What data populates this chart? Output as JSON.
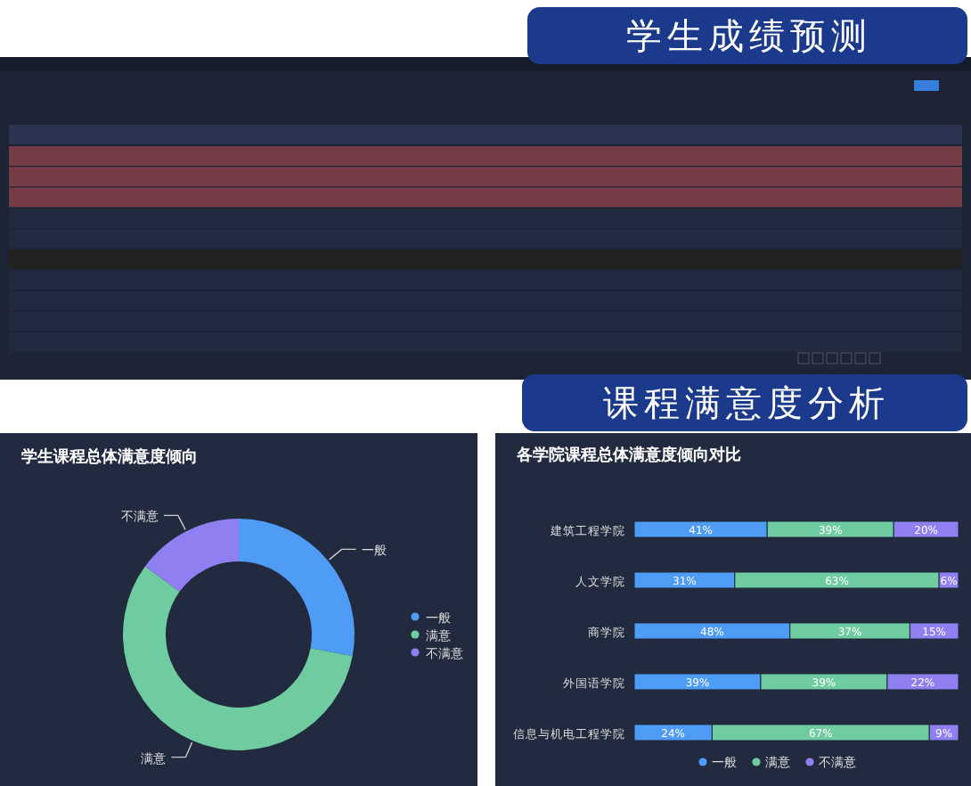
{
  "chart_data": [
    {
      "type": "other",
      "annotations": [
        "学生成绩预测",
        "课程满意度分析"
      ]
    },
    {
      "type": "donut",
      "title": "学生课程总体满意度倾向",
      "categories": [
        "一般",
        "满意",
        "不满意"
      ],
      "values": [
        28,
        57,
        15
      ],
      "colors": [
        "#4e9cf5",
        "#6fcba0",
        "#8f7ff0"
      ],
      "legend": "right"
    },
    {
      "type": "bar",
      "title": "各学院课程总体满意度倾向对比",
      "orientation": "horizontal",
      "stacked": true,
      "categories": [
        "建筑工程学院",
        "人文学院",
        "商学院",
        "外国语学院",
        "信息与机电工程学院"
      ],
      "xlim": [
        0,
        100
      ],
      "tick_labels": "y",
      "legend": "bottom",
      "series": [
        {
          "name": "一般",
          "color": "#4e9cf5",
          "values": [
            41,
            31,
            48,
            39,
            24
          ],
          "value_labels": [
            "41%",
            "31%",
            "48%",
            "39%",
            "24%"
          ]
        },
        {
          "name": "满意",
          "color": "#6fcba0",
          "values": [
            39,
            63,
            37,
            39,
            67
          ],
          "value_labels": [
            "39%",
            "63%",
            "37%",
            "39%",
            "67%"
          ]
        },
        {
          "name": "不满意",
          "color": "#8f7ff0",
          "values": [
            20,
            6,
            15,
            22,
            9
          ],
          "value_labels": [
            "20%",
            "6%",
            "15%",
            "22%",
            "9%"
          ]
        }
      ]
    }
  ]
}
